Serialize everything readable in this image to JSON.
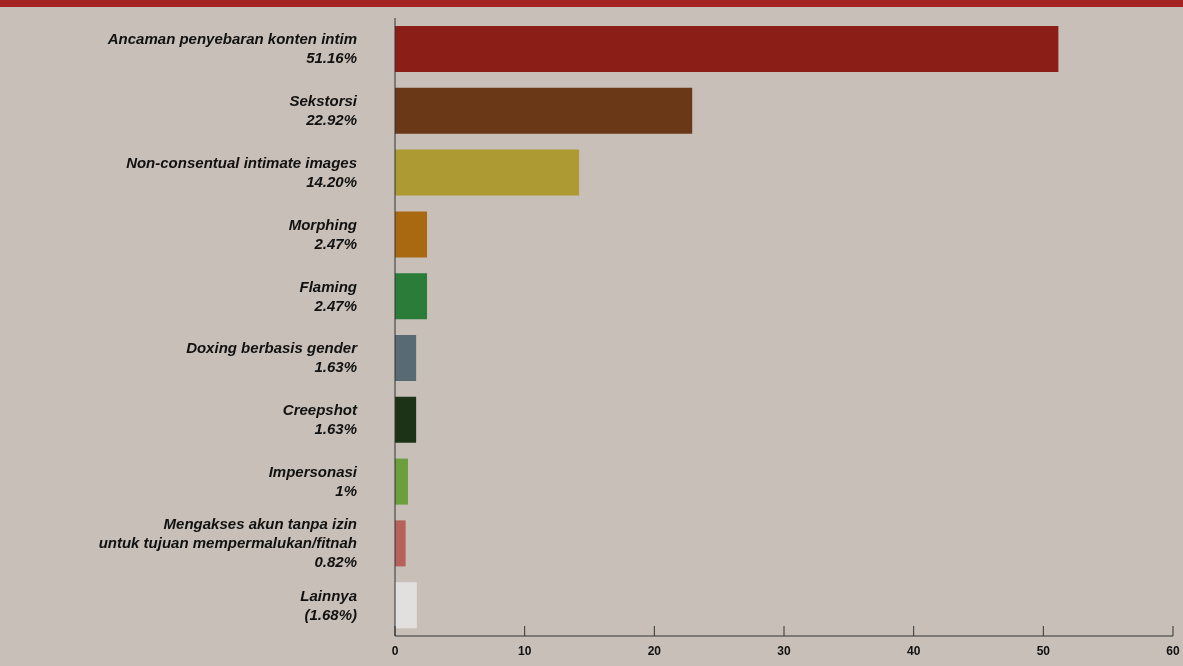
{
  "chart_data": {
    "type": "bar",
    "orientation": "horizontal",
    "categories": [
      "Ancaman penyebaran konten intim",
      "Sekstorsi",
      "Non-consentual intimate images",
      "Morphing",
      "Flaming",
      "Doxing berbasis gender",
      "Creepshot",
      "Impersonasi",
      "Mengakses akun tanpa izin\nuntuk tujuan mempermalukan/fitnah",
      "Lainnya"
    ],
    "values": [
      51.16,
      22.92,
      14.2,
      2.47,
      2.47,
      1.63,
      1.63,
      1,
      0.82,
      1.68
    ],
    "value_labels": [
      "51.16%",
      "22.92%",
      "14.20%",
      "2.47%",
      "2.47%",
      "1.63%",
      "1.63%",
      "1%",
      "0.82%",
      "(1.68%)"
    ],
    "colors": [
      "#8b1f18",
      "#6a3816",
      "#ad9a32",
      "#a96910",
      "#2a7c38",
      "#586a73",
      "#1c3317",
      "#6b9f3e",
      "#b6625b",
      "#e2e0df"
    ],
    "xlim": [
      0,
      60
    ],
    "xticks": [
      0,
      10,
      20,
      30,
      40,
      50,
      60
    ],
    "grid": false,
    "legend": false
  }
}
